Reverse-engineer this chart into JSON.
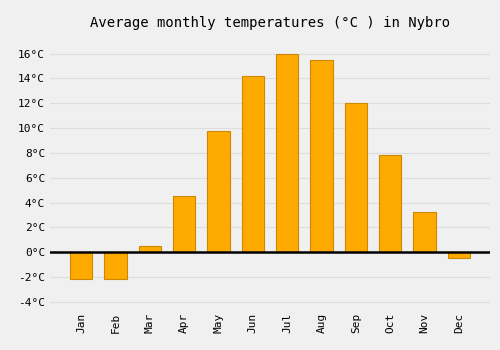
{
  "months": [
    "Jan",
    "Feb",
    "Mar",
    "Apr",
    "May",
    "Jun",
    "Jul",
    "Aug",
    "Sep",
    "Oct",
    "Nov",
    "Dec"
  ],
  "values": [
    -2.2,
    -2.2,
    0.5,
    4.5,
    9.8,
    14.2,
    16.0,
    15.5,
    12.0,
    7.8,
    3.2,
    -0.5
  ],
  "bar_color": "#FFAA00",
  "bar_edge_color": "#CC8800",
  "title": "Average monthly temperatures (°C ) in Nybro",
  "ylim": [
    -4.5,
    17.5
  ],
  "yticks": [
    -4,
    -2,
    0,
    2,
    4,
    6,
    8,
    10,
    12,
    14,
    16
  ],
  "background_color": "#f0f0f0",
  "grid_color": "#dddddd",
  "title_fontsize": 10,
  "tick_fontsize": 8,
  "font_family": "monospace"
}
